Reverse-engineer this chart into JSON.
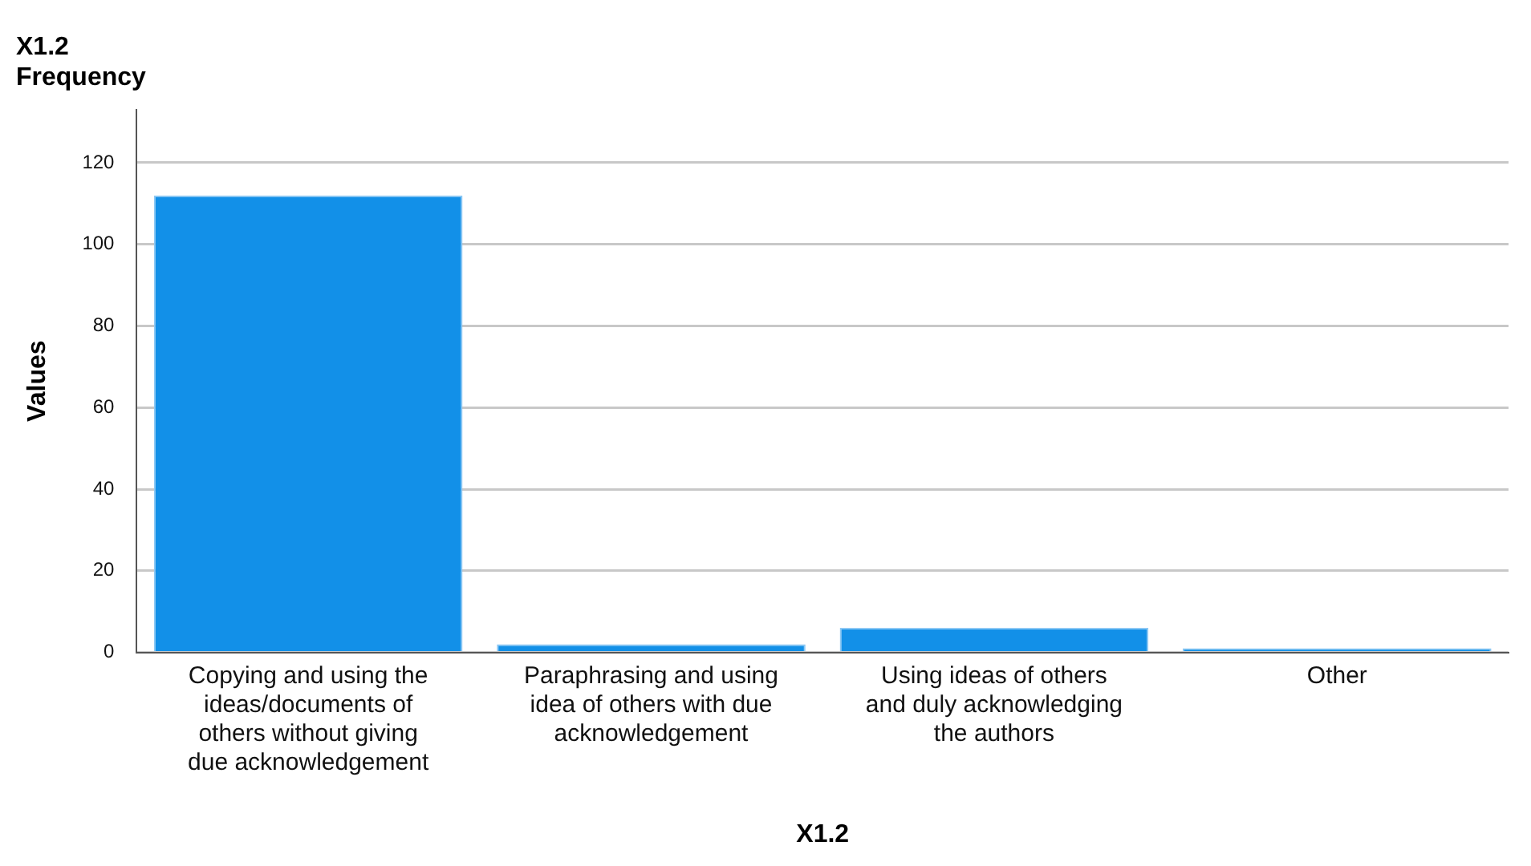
{
  "chart_data": {
    "type": "bar",
    "title": "X1.2",
    "subtitle": "Frequency",
    "xlabel": "X1.2",
    "ylabel": "Values",
    "categories": [
      "Copying and using the ideas/documents of others without giving due acknowledgement",
      "Paraphrasing and using idea of others with due acknowledgement",
      "Using ideas of others and duly acknowledging the authors",
      "Other"
    ],
    "values": [
      112,
      2,
      6,
      1
    ],
    "color": "#1290e8",
    "ylim": [
      0,
      133
    ],
    "yticks": [
      0,
      20,
      40,
      60,
      80,
      100,
      120
    ],
    "grid": "y",
    "legend": false
  }
}
